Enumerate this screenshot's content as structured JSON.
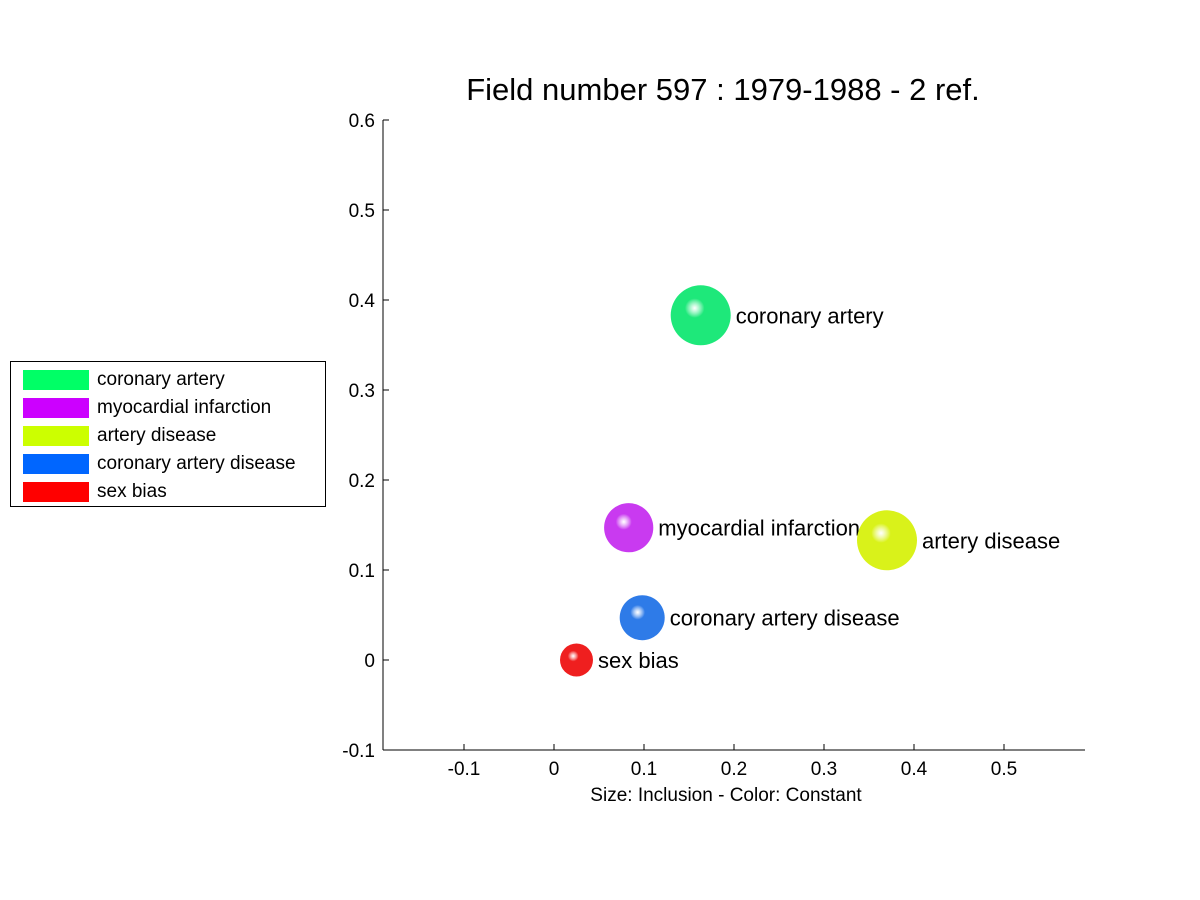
{
  "chart_data": {
    "type": "scatter",
    "title": "Field number 597 : 1979-1988  - 2 ref.",
    "xlabel": "Size: Inclusion - Color: Constant",
    "ylabel": "",
    "xlim": [
      -0.19,
      0.59
    ],
    "ylim": [
      -0.1,
      0.6
    ],
    "xticks": [
      -0.1,
      0,
      0.1,
      0.2,
      0.3,
      0.4,
      0.5
    ],
    "xtick_labels": [
      "-0.1",
      "0",
      "0.1",
      "0.2",
      "0.3",
      "0.4",
      "0.5"
    ],
    "yticks": [
      -0.1,
      0,
      0.1,
      0.2,
      0.3,
      0.4,
      0.5,
      0.6
    ],
    "ytick_labels": [
      "-0.1",
      "0",
      "0.1",
      "0.2",
      "0.3",
      "0.4",
      "0.5",
      "0.6"
    ],
    "grid": false,
    "legend_position": "left",
    "points": [
      {
        "label": "coronary artery",
        "x": 0.163,
        "y": 0.383,
        "size": 1.0,
        "color": "#1ee87a"
      },
      {
        "label": "myocardial infarction",
        "x": 0.083,
        "y": 0.147,
        "size": 0.82,
        "color": "#c93af0"
      },
      {
        "label": "artery disease",
        "x": 0.37,
        "y": 0.133,
        "size": 1.0,
        "color": "#d9f21a"
      },
      {
        "label": "coronary artery disease",
        "x": 0.098,
        "y": 0.047,
        "size": 0.75,
        "color": "#2e7be8"
      },
      {
        "label": "sex bias",
        "x": 0.025,
        "y": 0.0,
        "size": 0.55,
        "color": "#ef1f1f"
      }
    ]
  },
  "legend": {
    "items": [
      {
        "label": "coronary artery",
        "color": "#00ff66"
      },
      {
        "label": "myocardial infarction",
        "color": "#cc00ff"
      },
      {
        "label": "artery disease",
        "color": "#ccff00"
      },
      {
        "label": "coronary artery disease",
        "color": "#0066ff"
      },
      {
        "label": "sex bias",
        "color": "#ff0000"
      }
    ]
  }
}
